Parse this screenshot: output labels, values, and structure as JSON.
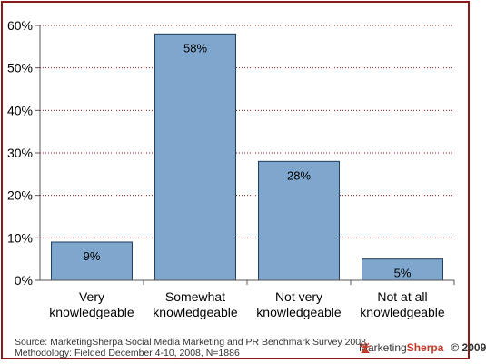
{
  "chart_data": {
    "type": "bar",
    "categories": [
      [
        "Very",
        "knowledgeable"
      ],
      [
        "Somewhat",
        "knowledgeable"
      ],
      [
        "Not very",
        "knowledgeable"
      ],
      [
        "Not at all",
        "knowledgeable"
      ]
    ],
    "values": [
      9,
      58,
      28,
      5
    ],
    "data_labels": [
      "9%",
      "58%",
      "28%",
      "5%"
    ],
    "ylim": [
      0,
      60
    ],
    "yticks": [
      "0%",
      "10%",
      "20%",
      "30%",
      "40%",
      "50%",
      "60%"
    ],
    "grid": true,
    "bar_color": "#7fa6cd",
    "bar_stroke": "#1f3a5a",
    "grid_color": "#8b1a1a"
  },
  "footer": {
    "source": "Source: MarketingSherpa Social Media Marketing and PR Benchmark Survey 2008",
    "methodology": "Methodology: Fielded December 4-10, 2008, N=1886"
  },
  "brand": {
    "name_part1": "Marketing",
    "name_part2": "Sherpa",
    "copyright": "© 2009",
    "icon": "sunburst-logo-icon"
  }
}
